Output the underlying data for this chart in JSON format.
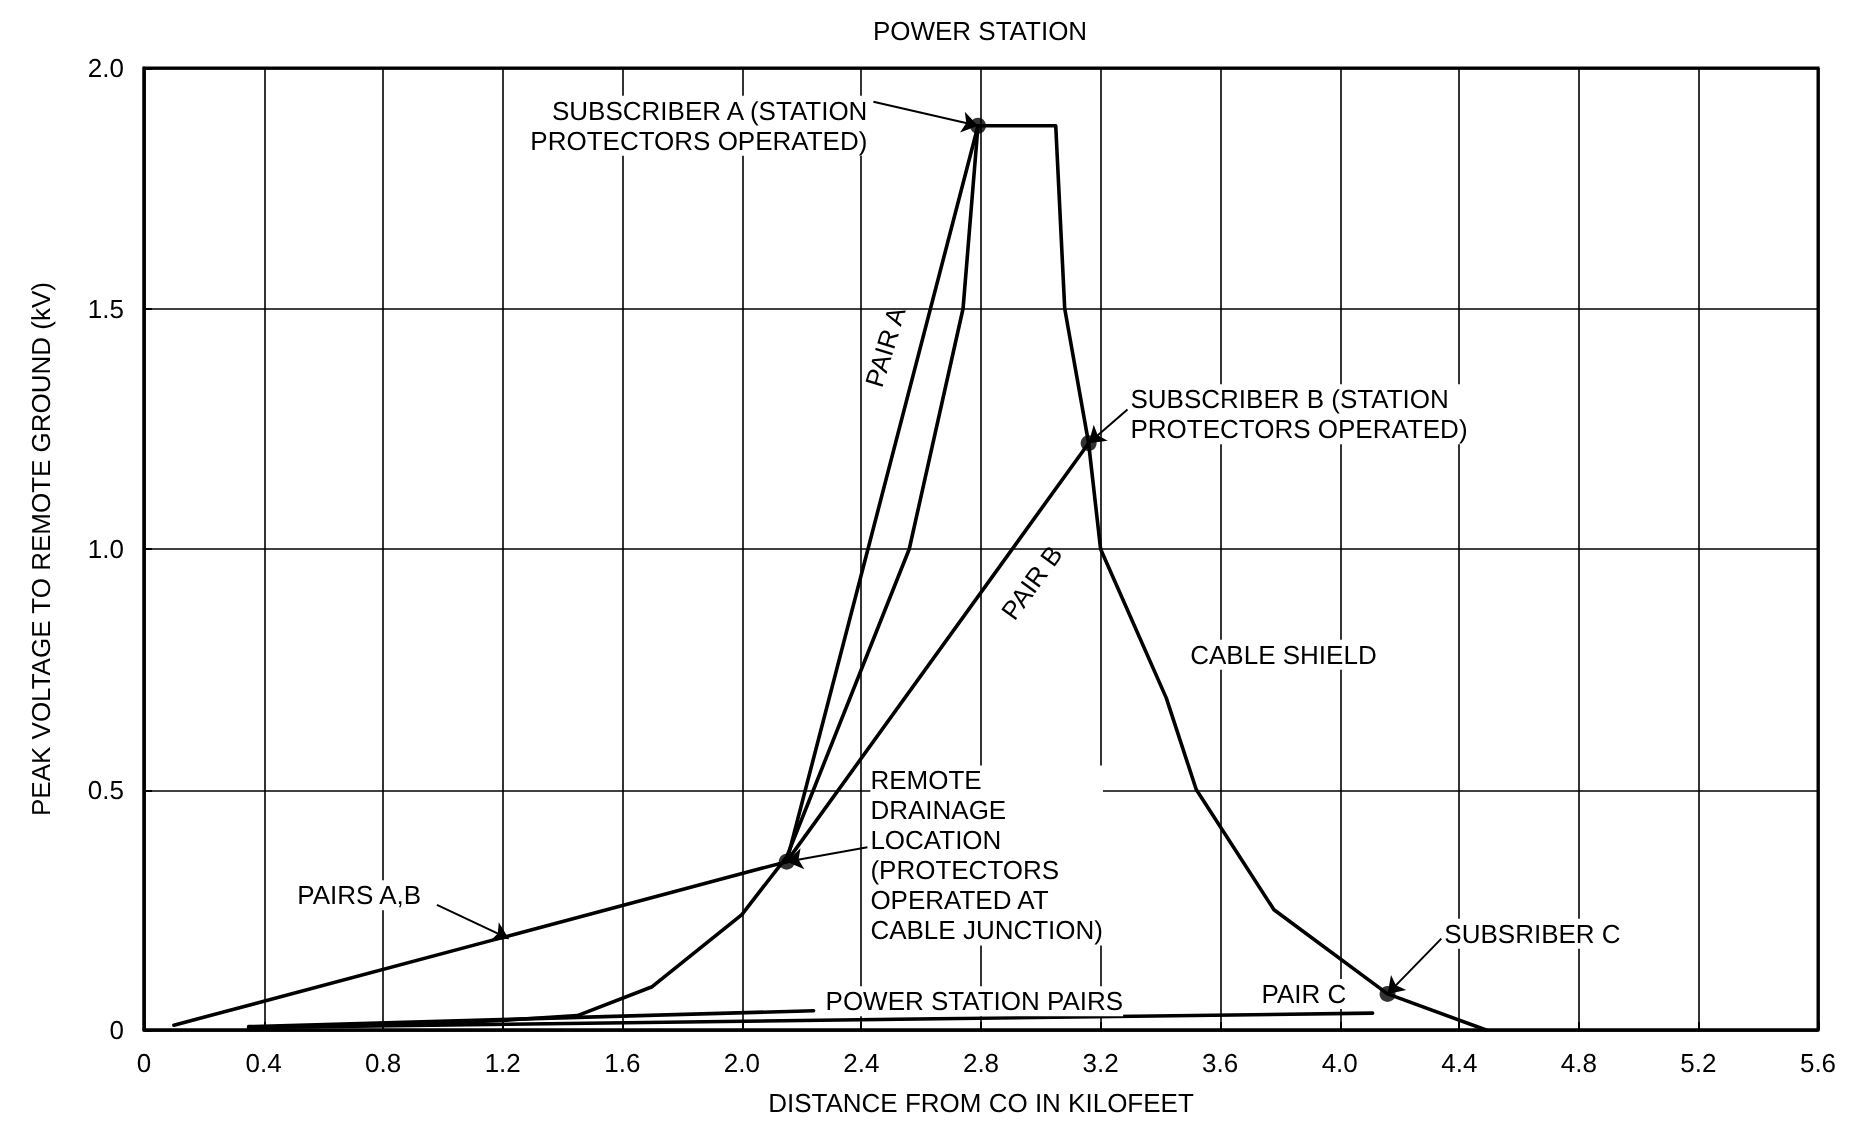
{
  "chart_data": {
    "type": "line",
    "title": "POWER STATION",
    "xlabel": "DISTANCE FROM CO IN KILOFEET",
    "ylabel": "PEAK VOLTAGE TO REMOTE GROUND (kV)",
    "xlim": [
      0,
      5.6
    ],
    "xticks": [
      0,
      0.4,
      0.8,
      1.2,
      1.6,
      {
        "value": 2,
        "label": "2.0"
      },
      2.4,
      2.8,
      3.2,
      3.6,
      {
        "value": 4,
        "label": "4.0"
      },
      4.4,
      4.8,
      5.2,
      5.6
    ],
    "ylim": [
      0,
      2
    ],
    "yticks": [
      0,
      0.5,
      {
        "value": 1,
        "label": "1.0"
      },
      1.5,
      {
        "value": 2,
        "label": "2.0"
      }
    ],
    "grid": true,
    "line_style": "solid",
    "series": [
      {
        "name": "CABLE SHIELD",
        "color": "#000000",
        "x": [
          0.35,
          0.8,
          1.2,
          1.45,
          1.7,
          2.0,
          2.15,
          2.24,
          2.4,
          2.56,
          2.74,
          2.79,
          3.05,
          3.08,
          3.16,
          3.2,
          3.42,
          3.52,
          3.78,
          4.16,
          4.49
        ],
        "values": [
          0.005,
          0.01,
          0.02,
          0.03,
          0.09,
          0.24,
          0.36,
          0.5,
          0.75,
          1.0,
          1.5,
          1.88,
          1.88,
          1.5,
          1.22,
          1.0,
          0.69,
          0.5,
          0.25,
          0.075,
          0
        ]
      },
      {
        "name": "PAIR A",
        "color": "#000000",
        "x": [
          2.15,
          2.79
        ],
        "values": [
          0.35,
          1.88
        ]
      },
      {
        "name": "PAIR B",
        "color": "#000000",
        "x": [
          2.15,
          3.16
        ],
        "values": [
          0.35,
          1.22
        ]
      },
      {
        "name": "PAIR C",
        "color": "#000000",
        "x": [
          0.35,
          4.11
        ],
        "values": [
          0.005,
          0.035
        ]
      },
      {
        "name": "POWER STATION PAIRS",
        "color": "#000000",
        "x": [
          0.35,
          2.24
        ],
        "values": [
          0.007,
          0.04
        ]
      },
      {
        "name": "PAIRS A,B",
        "color": "#000000",
        "x": [
          0.1,
          2.15
        ],
        "values": [
          0.01,
          0.35
        ]
      }
    ],
    "annotations": [
      {
        "text": "SUBSCRIBER A (STATION\nPROTECTORS OPERATED)",
        "x": 2.79,
        "y": 1.88
      },
      {
        "text": "SUBSCRIBER B (STATION\nPROTECTORS OPERATED)",
        "x": 3.16,
        "y": 1.22
      },
      {
        "text": "REMOTE\nDRAINAGE\nLOCATION\n(PROTECTORS\nOPERATED AT\nCABLE JUNCTION)",
        "x": 2.15,
        "y": 0.35
      },
      {
        "text": "SUBSRIBER C",
        "x": 4.16,
        "y": 0.075
      }
    ]
  }
}
